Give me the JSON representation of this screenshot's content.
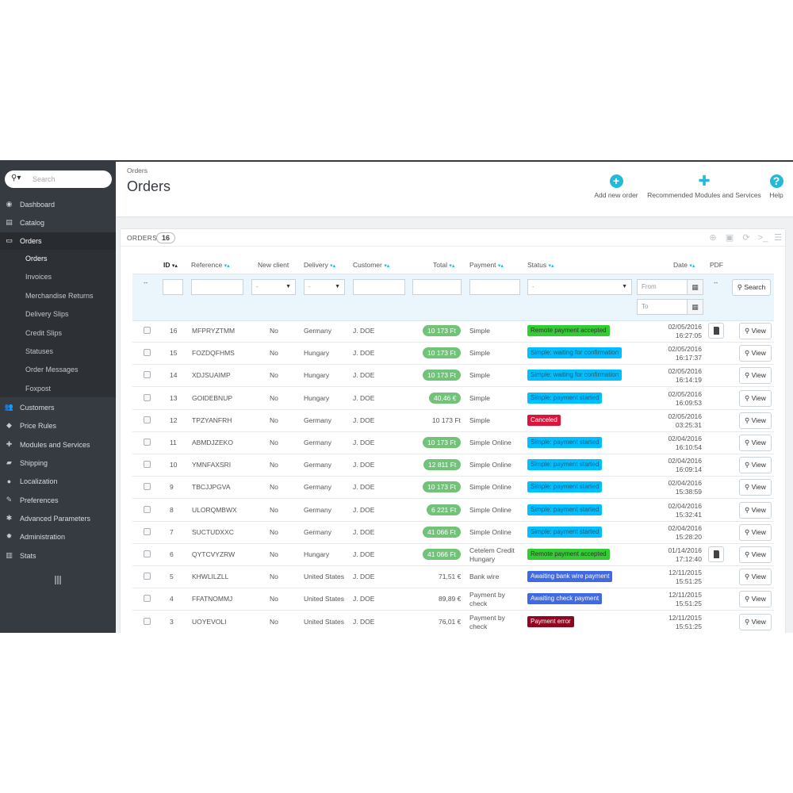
{
  "sidebar": {
    "search_placeholder": "Search",
    "items": [
      {
        "label": "Dashboard",
        "icon": "dashboard-icon",
        "glyph": "◉"
      },
      {
        "label": "Catalog",
        "icon": "catalog-icon",
        "glyph": "▤"
      },
      {
        "label": "Orders",
        "icon": "orders-icon",
        "glyph": "▭"
      },
      {
        "label": "Customers",
        "icon": "customers-icon",
        "glyph": "👥"
      },
      {
        "label": "Price Rules",
        "icon": "price-rules-icon",
        "glyph": "◆"
      },
      {
        "label": "Modules and Services",
        "icon": "modules-icon",
        "glyph": "✚"
      },
      {
        "label": "Shipping",
        "icon": "shipping-icon",
        "glyph": "▰"
      },
      {
        "label": "Localization",
        "icon": "localization-icon",
        "glyph": "●"
      },
      {
        "label": "Preferences",
        "icon": "preferences-icon",
        "glyph": "✎"
      },
      {
        "label": "Advanced Parameters",
        "icon": "advanced-parameters-icon",
        "glyph": "✱"
      },
      {
        "label": "Administration",
        "icon": "administration-icon",
        "glyph": "✹"
      },
      {
        "label": "Stats",
        "icon": "stats-icon",
        "glyph": "▥"
      }
    ],
    "submenu": [
      "Orders",
      "Invoices",
      "Merchandise Returns",
      "Delivery Slips",
      "Credit Slips",
      "Statuses",
      "Order Messages",
      "Foxpost"
    ]
  },
  "header": {
    "breadcrumb": "Orders",
    "title": "Orders",
    "add_new_order": "Add new order",
    "recommended": "Recommended Modules and Services",
    "help": "Help"
  },
  "panel": {
    "title": "ORDERS",
    "count": "16"
  },
  "columns": {
    "id": "ID",
    "reference": "Reference",
    "new_client": "New client",
    "delivery": "Delivery",
    "customer": "Customer",
    "total": "Total",
    "payment": "Payment",
    "status": "Status",
    "date": "Date",
    "pdf": "PDF"
  },
  "filters": {
    "select_default": "-",
    "from_placeholder": "From",
    "to_placeholder": "To",
    "dash": "--",
    "search_label": "Search"
  },
  "view_label": "View",
  "colors": {
    "sidebar": "#363a41",
    "accent": "#25b9d7",
    "green": "#72c279",
    "status_green": "#32cd32",
    "status_cyan": "#00bfff",
    "status_red": "#dc143c",
    "status_blue": "#4169e1",
    "status_dark_red": "#8f0621"
  },
  "rows": [
    {
      "id": "16",
      "ref": "MFPRYZTMM",
      "new": "No",
      "delivery": "Germany",
      "customer": "J. DOE",
      "total": "10 173 Ft",
      "badge": true,
      "payment": "Simple",
      "status": "Remote payment accepted",
      "scolor": "#32cd32",
      "stext": "#333",
      "date": "02/05/2016",
      "time": "16:27:05",
      "pdf": true
    },
    {
      "id": "15",
      "ref": "FOZDQFHMS",
      "new": "No",
      "delivery": "Hungary",
      "customer": "J. DOE",
      "total": "10 173 Ft",
      "badge": true,
      "payment": "Simple",
      "status": "Simple: waiting for confirmation",
      "scolor": "#00bfff",
      "stext": "#1b5c7a",
      "date": "02/05/2016",
      "time": "16:17:37",
      "pdf": false
    },
    {
      "id": "14",
      "ref": "XDJSUAIMP",
      "new": "No",
      "delivery": "Hungary",
      "customer": "J. DOE",
      "total": "10 173 Ft",
      "badge": true,
      "payment": "Simple",
      "status": "Simple: waiting for confirmation",
      "scolor": "#00bfff",
      "stext": "#1b5c7a",
      "date": "02/05/2016",
      "time": "16:14:19",
      "pdf": false
    },
    {
      "id": "13",
      "ref": "GOIDEBNUP",
      "new": "No",
      "delivery": "Hungary",
      "customer": "J. DOE",
      "total": "40,46 €",
      "badge": true,
      "payment": "Simple",
      "status": "Simple: payment started",
      "scolor": "#00bfff",
      "stext": "#1b5c7a",
      "date": "02/05/2016",
      "time": "16:09:53",
      "pdf": false
    },
    {
      "id": "12",
      "ref": "TPZYANFRH",
      "new": "No",
      "delivery": "Germany",
      "customer": "J. DOE",
      "total": "10 173 Ft",
      "badge": false,
      "payment": "Simple",
      "status": "Canceled",
      "scolor": "#dc143c",
      "stext": "#ffffff",
      "date": "02/05/2016",
      "time": "03:25:31",
      "pdf": false
    },
    {
      "id": "11",
      "ref": "ABMDJZEKO",
      "new": "No",
      "delivery": "Germany",
      "customer": "J. DOE",
      "total": "10 173 Ft",
      "badge": true,
      "payment": "Simple Online",
      "status": "Simple: payment started",
      "scolor": "#00bfff",
      "stext": "#1b5c7a",
      "date": "02/04/2016",
      "time": "16:10:54",
      "pdf": false
    },
    {
      "id": "10",
      "ref": "YMNFAXSRI",
      "new": "No",
      "delivery": "Germany",
      "customer": "J. DOE",
      "total": "12 811 Ft",
      "badge": true,
      "payment": "Simple Online",
      "status": "Simple: payment started",
      "scolor": "#00bfff",
      "stext": "#1b5c7a",
      "date": "02/04/2016",
      "time": "16:09:14",
      "pdf": false
    },
    {
      "id": "9",
      "ref": "TBCJJPGVA",
      "new": "No",
      "delivery": "Germany",
      "customer": "J. DOE",
      "total": "10 173 Ft",
      "badge": true,
      "payment": "Simple Online",
      "status": "Simple: payment started",
      "scolor": "#00bfff",
      "stext": "#1b5c7a",
      "date": "02/04/2016",
      "time": "15:38:59",
      "pdf": false
    },
    {
      "id": "8",
      "ref": "ULORQMBWX",
      "new": "No",
      "delivery": "Germany",
      "customer": "J. DOE",
      "total": "6 221 Ft",
      "badge": true,
      "payment": "Simple Online",
      "status": "Simple: payment started",
      "scolor": "#00bfff",
      "stext": "#1b5c7a",
      "date": "02/04/2016",
      "time": "15:32:41",
      "pdf": false
    },
    {
      "id": "7",
      "ref": "SUCTUDXXC",
      "new": "No",
      "delivery": "Germany",
      "customer": "J. DOE",
      "total": "41 066 Ft",
      "badge": true,
      "payment": "Simple Online",
      "status": "Simple: payment started",
      "scolor": "#00bfff",
      "stext": "#1b5c7a",
      "date": "02/04/2016",
      "time": "15:28:20",
      "pdf": false
    },
    {
      "id": "6",
      "ref": "QYTCVYZRW",
      "new": "No",
      "delivery": "Hungary",
      "customer": "J. DOE",
      "total": "41 066 Ft",
      "badge": true,
      "payment": "Cetelem Credit Hungary",
      "status": "Remote payment accepted",
      "scolor": "#32cd32",
      "stext": "#333",
      "date": "01/14/2016",
      "time": "17:12:40",
      "pdf": true
    },
    {
      "id": "5",
      "ref": "KHWLILZLL",
      "new": "No",
      "delivery": "United States",
      "customer": "J. DOE",
      "total": "71,51 €",
      "badge": false,
      "payment": "Bank wire",
      "status": "Awaiting bank wire payment",
      "scolor": "#4169e1",
      "stext": "#ffffff",
      "date": "12/11/2015",
      "time": "15:51:25",
      "pdf": false
    },
    {
      "id": "4",
      "ref": "FFATNOMMJ",
      "new": "No",
      "delivery": "United States",
      "customer": "J. DOE",
      "total": "89,89 €",
      "badge": false,
      "payment": "Payment by check",
      "status": "Awaiting check payment",
      "scolor": "#4169e1",
      "stext": "#ffffff",
      "date": "12/11/2015",
      "time": "15:51:25",
      "pdf": false
    },
    {
      "id": "3",
      "ref": "UOYEVOLI",
      "new": "No",
      "delivery": "United States",
      "customer": "J. DOE",
      "total": "76,01 €",
      "badge": false,
      "payment": "Payment by check",
      "status": "Payment error",
      "scolor": "#8f0621",
      "stext": "#ffffff",
      "date": "12/11/2015",
      "time": "15:51:25",
      "pdf": false
    }
  ]
}
